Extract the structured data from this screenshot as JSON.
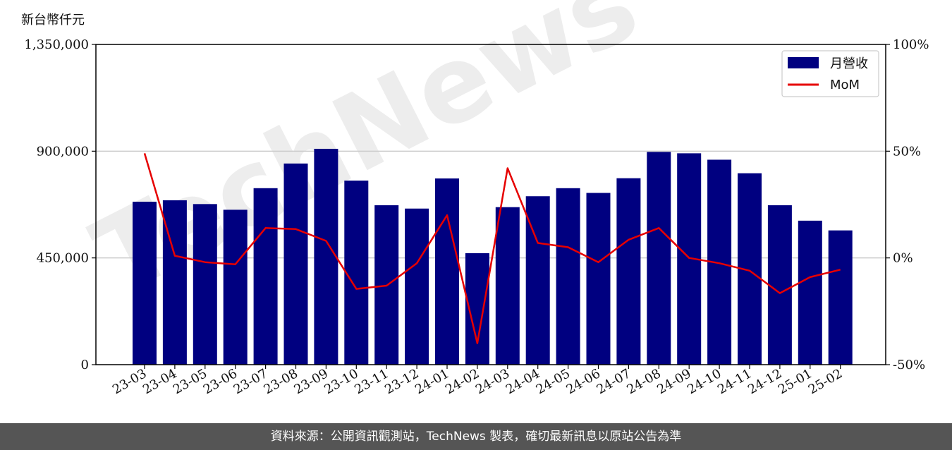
{
  "unit_label": "新台幣仟元",
  "footer_text": "資料來源：公開資訊觀測站，TechNews 製表，確切最新訊息以原站公告為準",
  "watermark_text": "TechNews",
  "colors": {
    "bar": "#000080",
    "line": "#e60000",
    "grid": "#cccccc"
  },
  "chart_data": {
    "type": "bar",
    "categories": [
      "23-03",
      "23-04",
      "23-05",
      "23-06",
      "23-07",
      "23-08",
      "23-09",
      "23-10",
      "23-11",
      "23-12",
      "24-01",
      "24-02",
      "24-03",
      "24-04",
      "24-05",
      "24-06",
      "24-07",
      "24-08",
      "24-09",
      "24-10",
      "24-11",
      "24-12",
      "25-01",
      "25-02"
    ],
    "series": [
      {
        "name": "月營收",
        "axis": "left",
        "type": "bar",
        "values": [
          687000,
          693000,
          677000,
          653000,
          744000,
          848000,
          910000,
          776000,
          672000,
          658000,
          785000,
          470000,
          664000,
          710000,
          744000,
          724000,
          786000,
          897000,
          891000,
          864000,
          807000,
          672000,
          607000,
          566000
        ]
      },
      {
        "name": "MoM",
        "axis": "right",
        "type": "line",
        "unit": "%",
        "values": [
          49,
          1,
          -2,
          -3,
          14,
          13.5,
          8,
          -14.5,
          -13,
          -2.5,
          20,
          -40,
          42,
          7,
          5,
          -2,
          8.5,
          14,
          0,
          -2.5,
          -6,
          -16.5,
          -9,
          -5.5
        ]
      }
    ],
    "left_axis": {
      "min": 0,
      "max": 1350000,
      "ticks": [
        "0",
        "450,000",
        "900,000",
        "1,350,000"
      ],
      "tick_values": [
        0,
        450000,
        900000,
        1350000
      ]
    },
    "right_axis": {
      "min": -50,
      "max": 100,
      "ticks": [
        "-50%",
        "0%",
        "50%",
        "100%"
      ],
      "tick_values": [
        -50,
        0,
        50,
        100
      ]
    },
    "grid": true,
    "legend": "top-right"
  }
}
